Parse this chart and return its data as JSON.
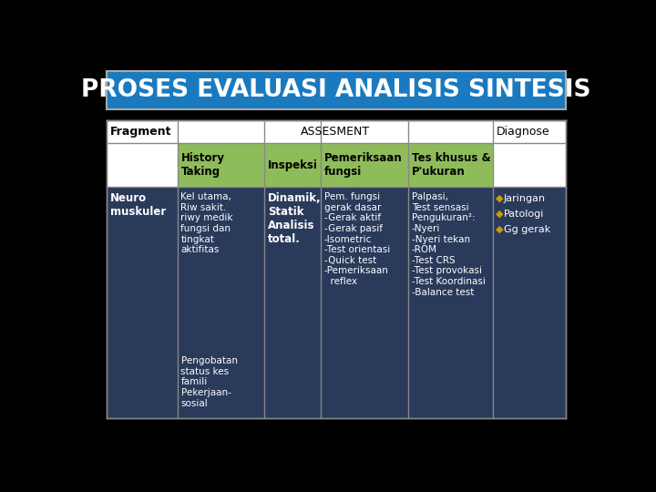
{
  "title": "PROSES EVALUASI ANALISIS SINTESIS",
  "title_bg": "#1a7abf",
  "title_color": "#ffffff",
  "bg_outer": "#000000",
  "col_header_bg": "#8fbc5a",
  "col_header_text": "#000000",
  "cell_bg": "#2a3a5a",
  "cell_text_color": "#ffffff",
  "col_headers": [
    "History\nTaking",
    "Inspeksi",
    "Pemeriksaan\nfungsi",
    "Tes khusus &\nP'ukuran"
  ],
  "col5_bullets": [
    "◆Jaringan",
    "◆Patologi",
    "◆Gg gerak"
  ],
  "col5_bullet_color": "#c8a000",
  "col5_text_color": "#ffffff",
  "fragment_label": "Fragment",
  "assesment_label": "ASSESMENT",
  "diagnose_label": "Diagnose",
  "row_label": "Neuro\nmuskuler",
  "col1_text_top": "Kel utama,\nRiw sakit.\nriwy medik\nfungsi dan\ntingkat\naktifitas",
  "col1_text_bot": "Pengobatan\nstatus kes\nfamili\nPekerjaan-\nsosial",
  "col2_text": "Dinamik,\nStatik\nAnalisis\ntotal.",
  "col3_text": "Pem. fungsi\ngerak dasar\n-Gerak aktif\n-Gerak pasif\n-Isometric\n-Test orientasi\n-Quick test\n-Pemeriksaan\n  reflex",
  "col4_text": "Palpasi,\nTest sensasi\nPengukuran²:\n-Nyeri\n-Nyeri tekan\n-ROM\n-Test CRS\n-Test provokasi\n-Test Koordinasi\n-Balance test"
}
